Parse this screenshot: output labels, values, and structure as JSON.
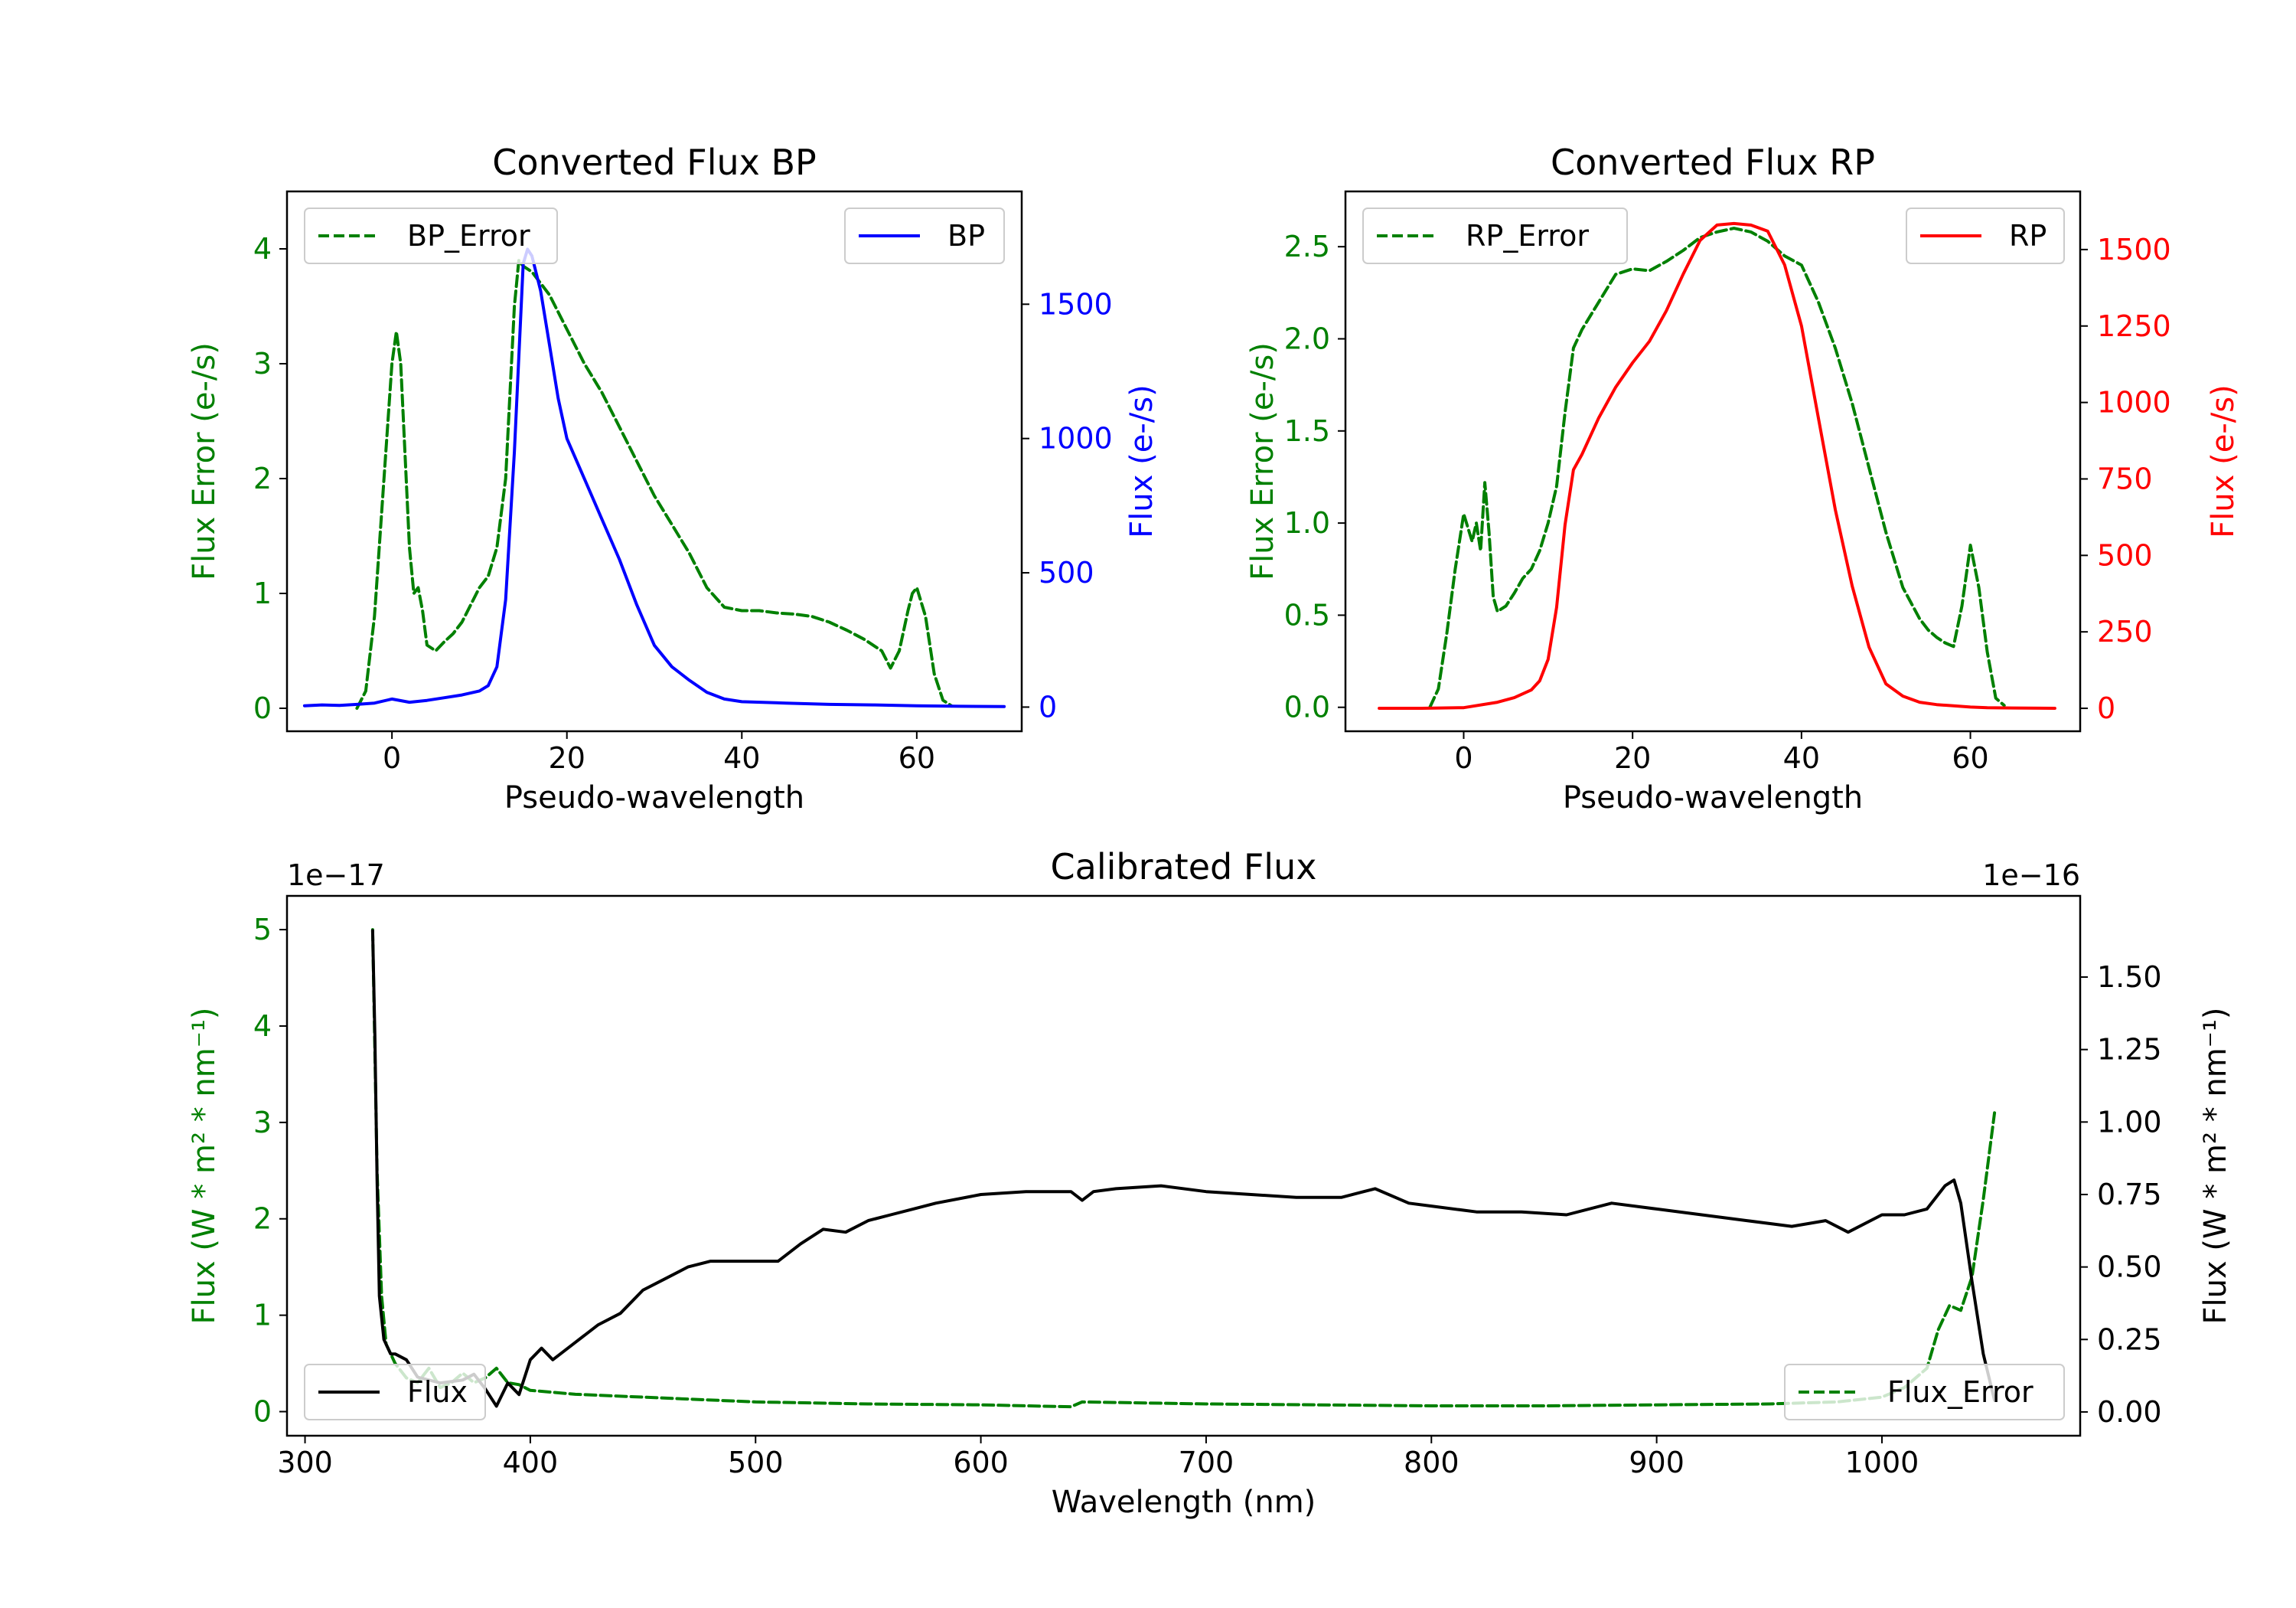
{
  "colors": {
    "bp": "#0000ff",
    "rp": "#ff0000",
    "error": "#008000",
    "flux": "#000000"
  },
  "chart_data": [
    {
      "type": "line",
      "title": "Converted Flux BP",
      "xlabel": "Pseudo-wavelength",
      "ylabel_left": "Flux Error (e-/s)",
      "ylabel_right": "Flux (e-/s)",
      "xlim": [
        -12,
        72
      ],
      "ylim_left": [
        -0.2,
        4.5
      ],
      "ylim_right": [
        -90,
        1920
      ],
      "x_ticks": [
        "0",
        "20",
        "40",
        "60"
      ],
      "y_ticks_left": [
        "0",
        "1",
        "2",
        "3",
        "4"
      ],
      "y_ticks_right": [
        "0",
        "500",
        "1000",
        "1500"
      ],
      "legend": [
        {
          "name": "BP_Error",
          "style": "dashed"
        },
        {
          "name": "BP",
          "style": "solid"
        }
      ],
      "series": [
        {
          "name": "BP_Error",
          "axis": "left",
          "x": [
            -4,
            -3,
            -2,
            -1,
            0,
            0.5,
            1,
            2,
            2.5,
            3,
            3.5,
            4,
            5,
            6,
            7,
            8,
            9,
            10,
            11,
            12,
            13,
            14,
            14.5,
            15,
            16,
            17,
            18,
            19,
            20,
            22,
            24,
            26,
            28,
            30,
            32,
            34,
            36,
            38,
            40,
            42,
            44,
            46,
            48,
            50,
            52,
            54,
            56,
            57,
            58,
            59,
            59.5,
            60,
            61,
            62,
            63,
            64
          ],
          "y": [
            0,
            0.15,
            0.8,
            1.9,
            3.0,
            3.28,
            3.0,
            1.4,
            1.0,
            1.05,
            0.85,
            0.55,
            0.5,
            0.58,
            0.65,
            0.75,
            0.9,
            1.05,
            1.15,
            1.4,
            2.0,
            3.5,
            3.9,
            3.85,
            3.8,
            3.7,
            3.6,
            3.45,
            3.3,
            3.0,
            2.75,
            2.45,
            2.15,
            1.85,
            1.6,
            1.35,
            1.05,
            0.88,
            0.85,
            0.85,
            0.83,
            0.82,
            0.8,
            0.75,
            0.68,
            0.6,
            0.5,
            0.35,
            0.5,
            0.85,
            1.0,
            1.05,
            0.8,
            0.3,
            0.07,
            0.02
          ]
        },
        {
          "name": "BP",
          "axis": "right",
          "x": [
            -10,
            -8,
            -6,
            -4,
            -2,
            0,
            2,
            4,
            6,
            8,
            10,
            11,
            12,
            13,
            14,
            15,
            15.5,
            16,
            17,
            18,
            19,
            20,
            22,
            24,
            26,
            28,
            30,
            32,
            34,
            36,
            38,
            40,
            45,
            50,
            55,
            60,
            65,
            70
          ],
          "y": [
            5,
            8,
            6,
            10,
            15,
            30,
            18,
            25,
            35,
            45,
            60,
            80,
            150,
            400,
            950,
            1650,
            1705,
            1680,
            1550,
            1350,
            1150,
            1000,
            850,
            700,
            550,
            380,
            230,
            150,
            100,
            55,
            30,
            20,
            15,
            10,
            8,
            5,
            3,
            2
          ]
        }
      ]
    },
    {
      "type": "line",
      "title": "Converted Flux RP",
      "xlabel": "Pseudo-wavelength",
      "ylabel_left": "Flux Error (e-/s)",
      "ylabel_right": "Flux (e-/s)",
      "xlim": [
        -14,
        73
      ],
      "ylim_left": [
        -0.13,
        2.8
      ],
      "ylim_right": [
        -75,
        1690
      ],
      "x_ticks": [
        "0",
        "20",
        "40",
        "60"
      ],
      "y_ticks_left": [
        "0.0",
        "0.5",
        "1.0",
        "1.5",
        "2.0",
        "2.5"
      ],
      "y_ticks_right": [
        "0",
        "250",
        "500",
        "750",
        "1000",
        "1250",
        "1500"
      ],
      "legend": [
        {
          "name": "RP_Error",
          "style": "dashed"
        },
        {
          "name": "RP",
          "style": "solid"
        }
      ],
      "series": [
        {
          "name": "RP_Error",
          "axis": "left",
          "x": [
            -4,
            -3,
            -2,
            -1,
            0,
            1,
            1.5,
            2,
            2.5,
            3,
            3.5,
            4,
            5,
            6,
            7,
            8,
            9,
            10,
            11,
            12,
            13,
            14,
            16,
            18,
            20,
            22,
            24,
            26,
            28,
            30,
            32,
            34,
            36,
            38,
            40,
            42,
            44,
            46,
            48,
            50,
            52,
            54,
            55,
            56,
            57,
            58,
            59,
            60,
            61,
            62,
            63,
            64
          ],
          "y": [
            0,
            0.1,
            0.4,
            0.75,
            1.05,
            0.9,
            1.0,
            0.85,
            1.22,
            0.95,
            0.6,
            0.52,
            0.55,
            0.62,
            0.7,
            0.75,
            0.85,
            1.0,
            1.2,
            1.6,
            1.95,
            2.05,
            2.2,
            2.35,
            2.38,
            2.37,
            2.42,
            2.48,
            2.55,
            2.58,
            2.6,
            2.58,
            2.53,
            2.45,
            2.4,
            2.2,
            1.95,
            1.65,
            1.3,
            0.95,
            0.65,
            0.48,
            0.42,
            0.38,
            0.35,
            0.33,
            0.55,
            0.88,
            0.65,
            0.3,
            0.05,
            0.01
          ]
        },
        {
          "name": "RP",
          "axis": "right",
          "x": [
            -10,
            -5,
            0,
            4,
            6,
            8,
            9,
            10,
            11,
            12,
            13,
            14,
            16,
            18,
            20,
            22,
            24,
            26,
            28,
            30,
            32,
            34,
            36,
            38,
            40,
            42,
            44,
            46,
            48,
            50,
            52,
            54,
            56,
            58,
            60,
            62,
            65,
            70
          ],
          "y": [
            0,
            0,
            2,
            20,
            35,
            60,
            90,
            160,
            330,
            600,
            780,
            830,
            950,
            1050,
            1130,
            1200,
            1300,
            1420,
            1530,
            1580,
            1585,
            1580,
            1560,
            1450,
            1250,
            950,
            650,
            400,
            200,
            80,
            40,
            20,
            12,
            8,
            4,
            2,
            1,
            0
          ]
        }
      ]
    },
    {
      "type": "line",
      "title": "Calibrated Flux",
      "xlabel": "Wavelength (nm)",
      "ylabel_left": "Flux (W * m² * nm⁻¹)",
      "ylabel_right": "Flux (W * m² * nm⁻¹)",
      "offset_left": "1e−17",
      "offset_right": "1e−16",
      "xlim": [
        292,
        1088
      ],
      "ylim_left": [
        -0.25,
        5.35
      ],
      "ylim_right": [
        -0.082,
        1.78
      ],
      "x_ticks": [
        "300",
        "400",
        "500",
        "600",
        "700",
        "800",
        "900",
        "1000"
      ],
      "y_ticks_left": [
        "0",
        "1",
        "2",
        "3",
        "4",
        "5"
      ],
      "y_ticks_right": [
        "0.00",
        "0.25",
        "0.50",
        "0.75",
        "1.00",
        "1.25",
        "1.50"
      ],
      "legend": [
        {
          "name": "Flux",
          "style": "solid"
        },
        {
          "name": "Flux_Error",
          "style": "dashed"
        }
      ],
      "series": [
        {
          "name": "Flux_Error",
          "axis": "left",
          "x": [
            330,
            332,
            334,
            336,
            340,
            345,
            350,
            355,
            360,
            365,
            370,
            375,
            380,
            385,
            390,
            395,
            400,
            410,
            420,
            450,
            500,
            550,
            600,
            640,
            645,
            700,
            750,
            800,
            850,
            900,
            950,
            980,
            1000,
            1010,
            1020,
            1025,
            1030,
            1035,
            1040,
            1045,
            1050
          ],
          "y": [
            5.0,
            2.5,
            1.2,
            0.7,
            0.5,
            0.35,
            0.3,
            0.45,
            0.25,
            0.3,
            0.4,
            0.3,
            0.35,
            0.45,
            0.3,
            0.28,
            0.22,
            0.2,
            0.18,
            0.15,
            0.1,
            0.08,
            0.07,
            0.05,
            0.1,
            0.08,
            0.07,
            0.06,
            0.06,
            0.07,
            0.08,
            0.1,
            0.15,
            0.25,
            0.45,
            0.85,
            1.1,
            1.05,
            1.4,
            2.2,
            3.1
          ]
        },
        {
          "name": "Flux",
          "axis": "right",
          "x": [
            330,
            331,
            332,
            333,
            335,
            338,
            340,
            345,
            350,
            360,
            370,
            375,
            380,
            385,
            390,
            395,
            400,
            405,
            410,
            420,
            430,
            440,
            450,
            460,
            470,
            480,
            490,
            500,
            510,
            520,
            530,
            540,
            550,
            560,
            570,
            580,
            600,
            620,
            640,
            645,
            650,
            660,
            680,
            700,
            720,
            740,
            760,
            775,
            790,
            800,
            820,
            840,
            860,
            880,
            900,
            920,
            940,
            960,
            975,
            985,
            1000,
            1010,
            1020,
            1028,
            1032,
            1035,
            1040,
            1045,
            1050
          ],
          "y": [
            1.66,
            1.3,
            0.8,
            0.4,
            0.25,
            0.2,
            0.2,
            0.18,
            0.12,
            0.1,
            0.11,
            0.13,
            0.08,
            0.02,
            0.1,
            0.06,
            0.18,
            0.22,
            0.18,
            0.24,
            0.3,
            0.34,
            0.42,
            0.46,
            0.5,
            0.52,
            0.52,
            0.52,
            0.52,
            0.58,
            0.63,
            0.62,
            0.66,
            0.68,
            0.7,
            0.72,
            0.75,
            0.76,
            0.76,
            0.73,
            0.76,
            0.77,
            0.78,
            0.76,
            0.75,
            0.74,
            0.74,
            0.77,
            0.72,
            0.71,
            0.69,
            0.69,
            0.68,
            0.72,
            0.7,
            0.68,
            0.66,
            0.64,
            0.66,
            0.62,
            0.68,
            0.68,
            0.7,
            0.78,
            0.8,
            0.72,
            0.45,
            0.2,
            0.04
          ]
        }
      ]
    }
  ]
}
